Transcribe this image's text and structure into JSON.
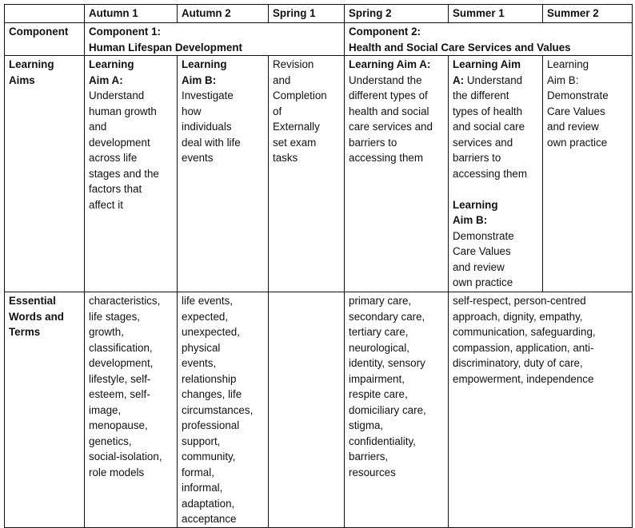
{
  "headers": [
    "",
    "Autumn 1",
    "Autumn 2",
    "Spring 1",
    "Spring 2",
    "Summer 1",
    "Summer 2"
  ],
  "component_row": {
    "label": "Component",
    "component1": "Component 1:\nHuman Lifespan Development",
    "component2": "Component 2:\nHealth and Social Care Services and Values"
  },
  "learning_aims_row": {
    "label": "Learning\nAims",
    "cells": [
      [
        {
          "b": true,
          "t": "Learning\nAim A:"
        },
        {
          "b": false,
          "t": "\nUnderstand\nhuman growth\nand\ndevelopment\nacross life\nstages and the\nfactors that\naffect it"
        }
      ],
      [
        {
          "b": true,
          "t": "Learning\nAim B:"
        },
        {
          "b": false,
          "t": "\nInvestigate\nhow\nindividuals\ndeal with life\nevents"
        }
      ],
      [
        {
          "b": false,
          "t": "Revision\nand\nCompletion\nof\nExternally\nset exam\ntasks"
        }
      ],
      [
        {
          "b": true,
          "t": "Learning Aim A:"
        },
        {
          "b": false,
          "t": "\nUnderstand the\ndifferent types of\nhealth and social\ncare services and\nbarriers to\naccessing them"
        }
      ],
      [
        {
          "b": true,
          "t": "Learning Aim\nA:"
        },
        {
          "b": false,
          "t": " Understand\nthe different\ntypes of health\nand social care\nservices and\nbarriers to\naccessing them\n\n"
        },
        {
          "b": true,
          "t": "Learning\nAim B:"
        },
        {
          "b": false,
          "t": "\nDemonstrate\nCare Values\nand review\nown practice"
        }
      ],
      [
        {
          "b": false,
          "t": "Learning\nAim B:\nDemonstrate\nCare Values\nand review\nown practice"
        }
      ]
    ]
  },
  "essential_row": {
    "label": "Essential\nWords and\nTerms",
    "autumn1": "characteristics,\nlife stages,\ngrowth,\nclassification,\ndevelopment,\nlifestyle, self-\nesteem, self-\nimage,\nmenopause,\ngenetics,\nsocial-isolation,\nrole models",
    "autumn2": "life events,\nexpected,\nunexpected,\nphysical\nevents,\nrelationship\nchanges, life\ncircumstances,\nprofessional\nsupport,\ncommunity,\nformal,\ninformal,\nadaptation,\nacceptance",
    "spring1": "",
    "spring2": "primary care,\nsecondary care,\ntertiary care,\nneurological,\nidentity, sensory\nimpairment,\nrespite care,\ndomiciliary care,\nstigma,\nconfidentiality,\nbarriers,\nresources",
    "summer": "self-respect, person-centred\napproach, dignity, empathy,\ncommunication, safeguarding,\ncompassion, application, anti-\ndiscriminatory, duty of care,\nempowerment, independence"
  }
}
